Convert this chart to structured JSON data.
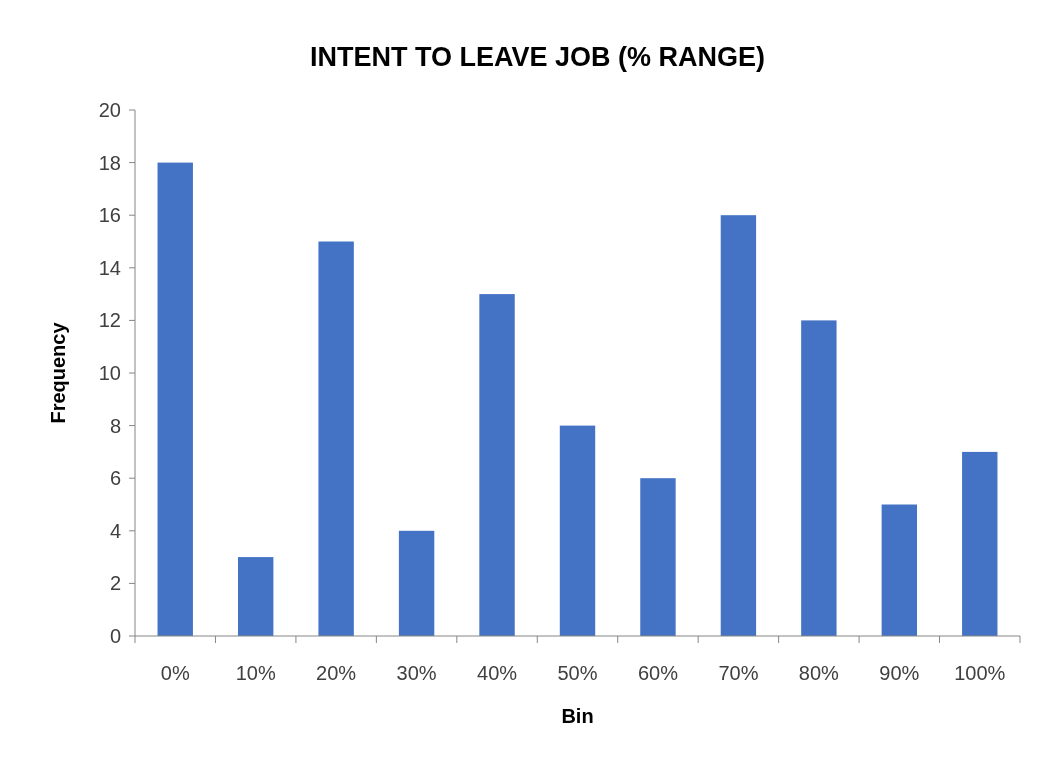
{
  "chart_data": {
    "type": "bar",
    "title": "INTENT TO LEAVE JOB (% RANGE)",
    "xlabel": "Bin",
    "ylabel": "Frequency",
    "categories": [
      "0%",
      "10%",
      "20%",
      "30%",
      "40%",
      "50%",
      "60%",
      "70%",
      "80%",
      "90%",
      "100%"
    ],
    "values": [
      18,
      3,
      15,
      4,
      13,
      8,
      6,
      16,
      12,
      5,
      7
    ],
    "color": "#4472c4",
    "ylim": [
      0,
      20
    ],
    "yticks": [
      0,
      2,
      4,
      6,
      8,
      10,
      12,
      14,
      16,
      18,
      20
    ],
    "grid": false
  }
}
